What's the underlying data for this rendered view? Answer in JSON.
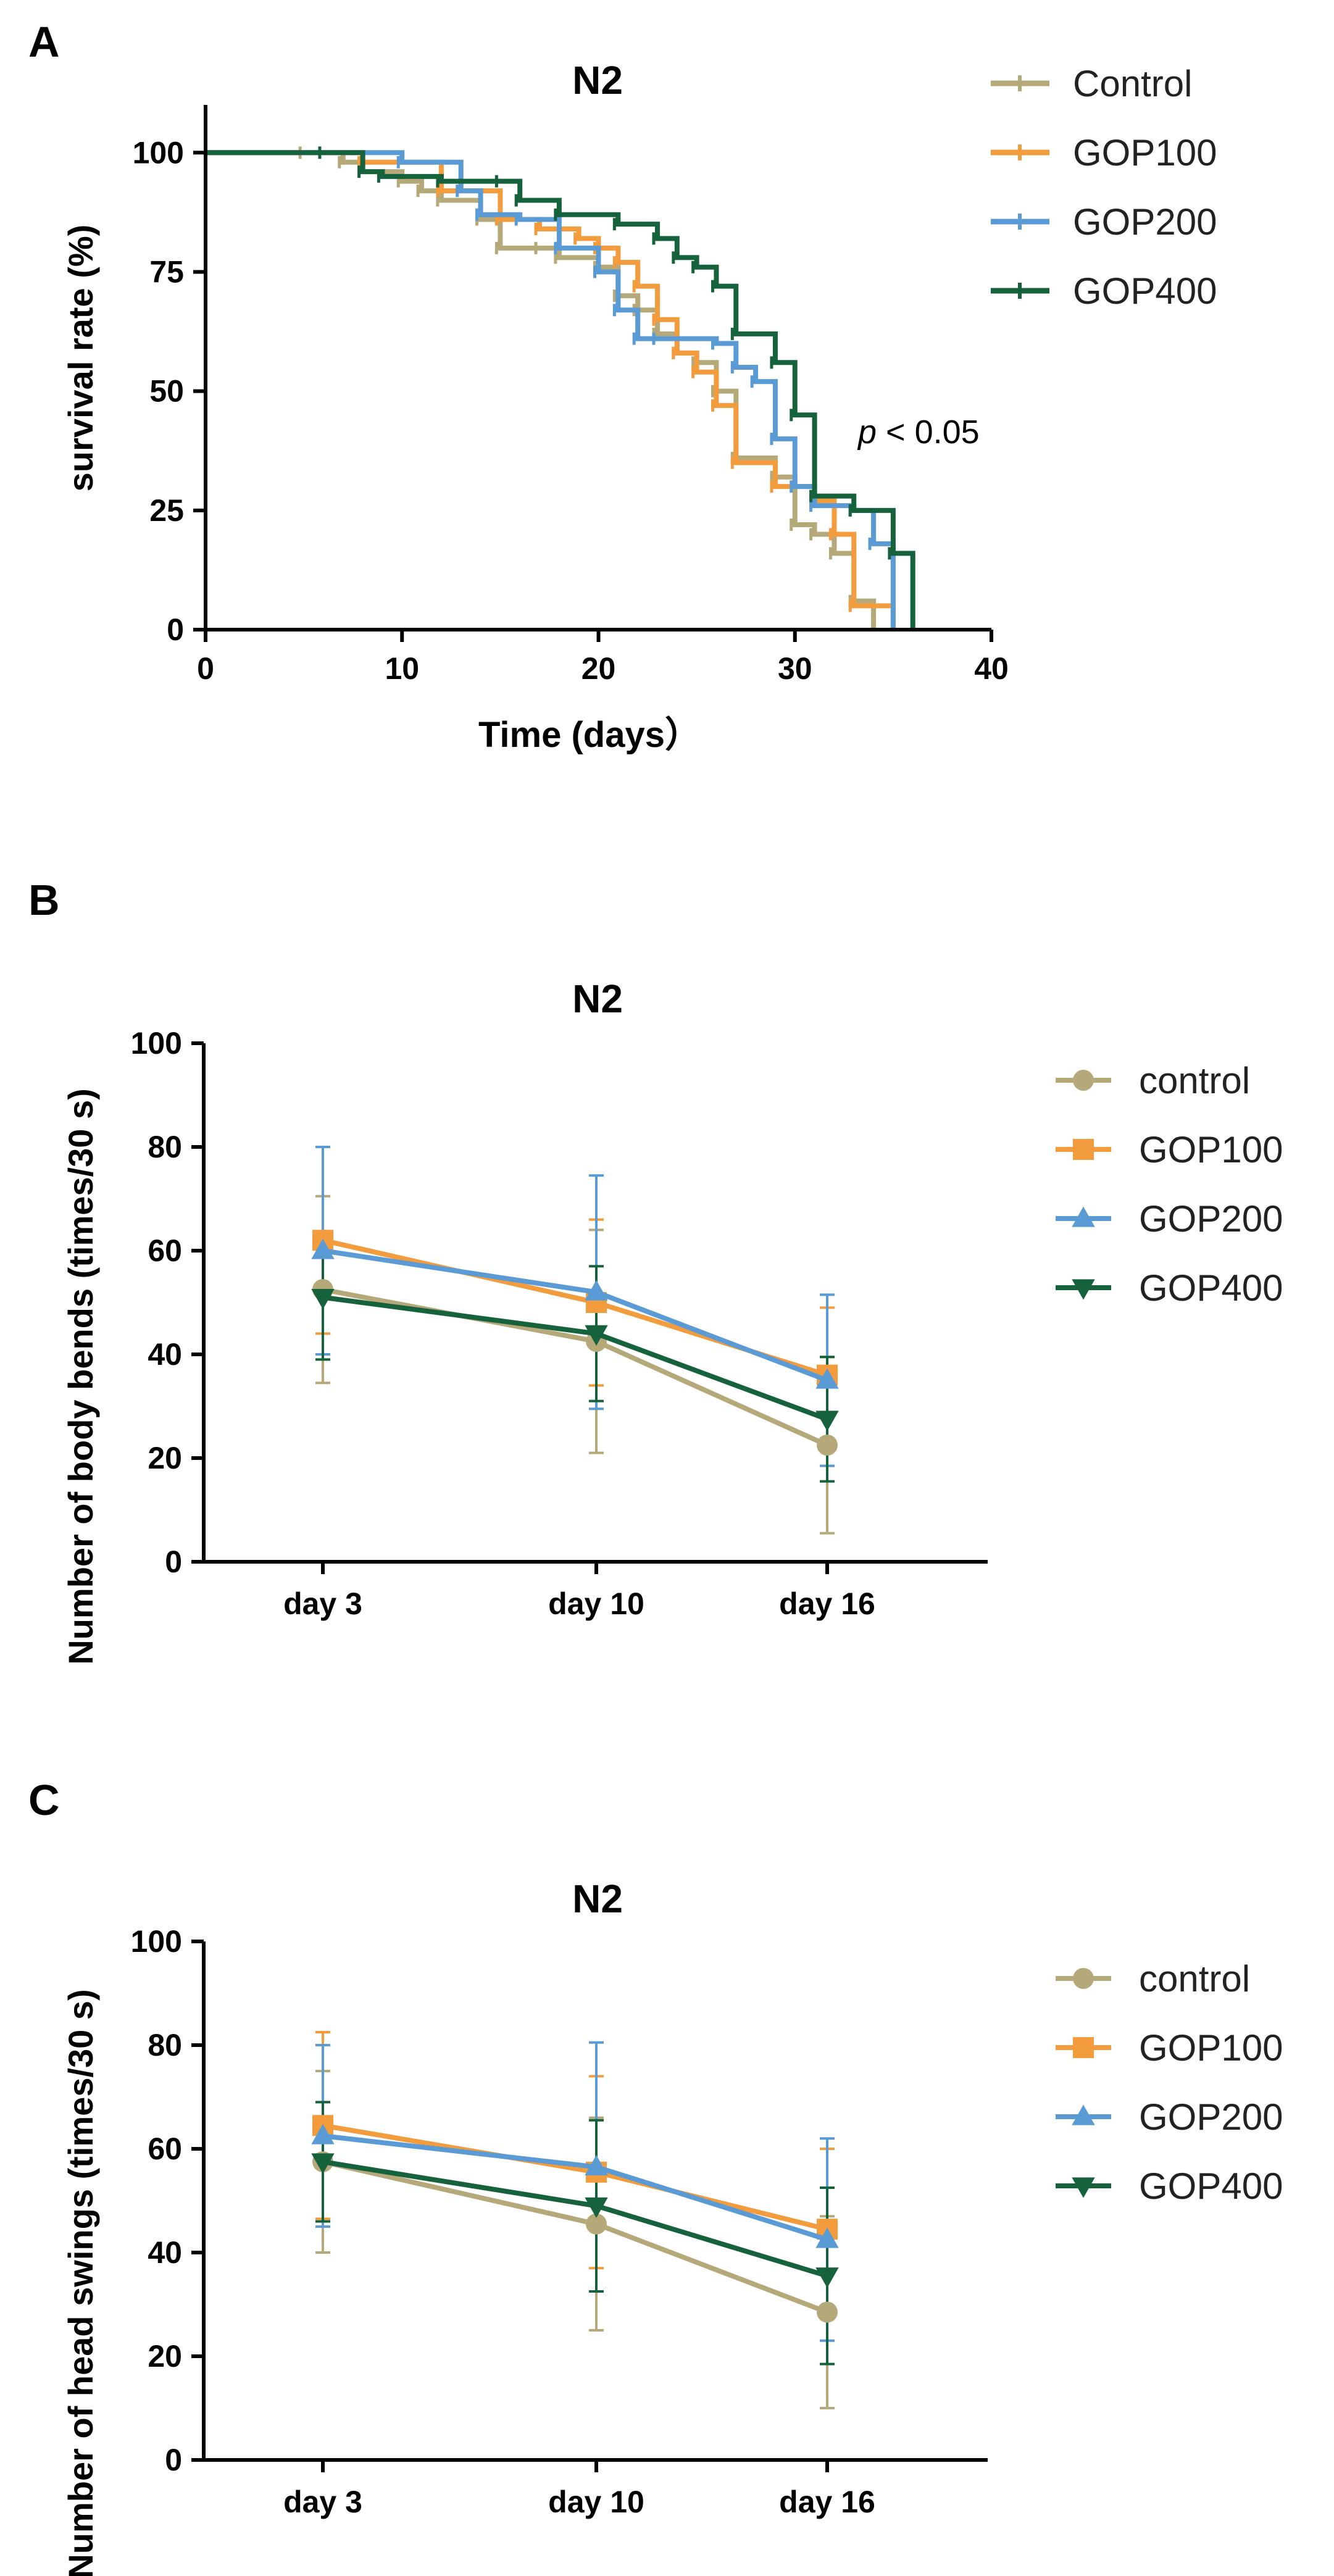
{
  "chart_data": [
    {
      "panel": "A",
      "type": "line",
      "subtype": "kaplan-meier",
      "title": "N2",
      "xlabel": "Time (days）",
      "ylabel": "survival rate (%)",
      "xlim": [
        0,
        40
      ],
      "ylim": [
        0,
        110
      ],
      "xticks": [
        "0",
        "10",
        "20",
        "30",
        "40"
      ],
      "yticks": [
        "0",
        "25",
        "50",
        "75",
        "100"
      ],
      "annotation": {
        "italic": "p",
        "rest": " < 0.05"
      },
      "legend_position": "top-right",
      "series": [
        {
          "name": "Control",
          "color": "#b5a97a",
          "x": [
            0,
            5,
            7,
            8,
            10,
            11,
            12,
            14,
            15,
            17,
            18,
            20,
            21,
            22,
            23,
            24,
            25,
            26,
            27,
            29,
            30,
            31,
            32,
            33,
            34
          ],
          "y": [
            100,
            100,
            98,
            96,
            94,
            92,
            90,
            86,
            80,
            80,
            78,
            76,
            70,
            67,
            62,
            58,
            56,
            50,
            36,
            32,
            22,
            20,
            16,
            6,
            0
          ]
        },
        {
          "name": "GOP100",
          "color": "#f39c3d",
          "x": [
            0,
            8,
            12,
            15,
            17,
            19,
            20,
            21,
            22,
            23,
            24,
            25,
            26,
            27,
            29,
            31,
            32,
            33,
            35
          ],
          "y": [
            100,
            98,
            92,
            86,
            84,
            82,
            80,
            77,
            72,
            65,
            58,
            54,
            47,
            35,
            30,
            27,
            20,
            5,
            0
          ]
        },
        {
          "name": "GOP200",
          "color": "#5b9bd5",
          "x": [
            0,
            10,
            13,
            14,
            16,
            18,
            20,
            21,
            22,
            23,
            26,
            27,
            28,
            29,
            30,
            31,
            33,
            34,
            35
          ],
          "y": [
            100,
            98,
            92,
            87,
            86,
            80,
            75,
            67,
            61,
            61,
            60,
            55,
            52,
            40,
            30,
            26,
            25,
            18,
            0
          ]
        },
        {
          "name": "GOP400",
          "color": "#16623d",
          "x": [
            0,
            6,
            8,
            9,
            12,
            15,
            16,
            18,
            21,
            23,
            24,
            25,
            26,
            27,
            29,
            30,
            31,
            33,
            35,
            36
          ],
          "y": [
            100,
            100,
            96,
            95,
            94,
            94,
            90,
            87,
            85,
            82,
            78,
            76,
            72,
            62,
            56,
            45,
            28,
            25,
            16,
            0
          ]
        }
      ]
    },
    {
      "panel": "B",
      "type": "line",
      "title": "N2",
      "xlabel": "",
      "ylabel": "Number of body bends (times/30 s)",
      "categories": [
        "day 3",
        "day 10",
        "day 16"
      ],
      "ylim": [
        0,
        100
      ],
      "yticks": [
        "0",
        "20",
        "40",
        "60",
        "80",
        "100"
      ],
      "legend_position": "right",
      "series": [
        {
          "name": "control",
          "color": "#b5a97a",
          "marker": "circle",
          "values": [
            52.5,
            42.5,
            22.5
          ],
          "errors": [
            18,
            21.5,
            17
          ]
        },
        {
          "name": "GOP100",
          "color": "#f39c3d",
          "marker": "square",
          "values": [
            62,
            50,
            36
          ],
          "errors": [
            18,
            16,
            13
          ]
        },
        {
          "name": "GOP200",
          "color": "#5b9bd5",
          "marker": "triangle-up",
          "values": [
            60,
            52,
            35
          ],
          "errors": [
            20,
            22.5,
            16.5
          ]
        },
        {
          "name": "GOP400",
          "color": "#16623d",
          "marker": "triangle-down",
          "values": [
            51,
            44,
            27.5
          ],
          "errors": [
            12,
            13,
            12
          ]
        }
      ]
    },
    {
      "panel": "C",
      "type": "line",
      "title": "N2",
      "xlabel": "",
      "ylabel": "Number of head swings (times/30 s)",
      "categories": [
        "day 3",
        "day 10",
        "day 16"
      ],
      "ylim": [
        0,
        100
      ],
      "yticks": [
        "0",
        "20",
        "40",
        "60",
        "80",
        "100"
      ],
      "legend_position": "right",
      "series": [
        {
          "name": "control",
          "color": "#b5a97a",
          "marker": "circle",
          "values": [
            57.5,
            45.5,
            28.5
          ],
          "errors": [
            17.5,
            20.5,
            18.5
          ]
        },
        {
          "name": "GOP100",
          "color": "#f39c3d",
          "marker": "square",
          "values": [
            64.5,
            55.5,
            44.5
          ],
          "errors": [
            18,
            18.5,
            15.5
          ]
        },
        {
          "name": "GOP200",
          "color": "#5b9bd5",
          "marker": "triangle-up",
          "values": [
            62.5,
            56.5,
            42.5
          ],
          "errors": [
            17.5,
            24,
            19.5
          ]
        },
        {
          "name": "GOP400",
          "color": "#16623d",
          "marker": "triangle-down",
          "values": [
            57.5,
            49,
            35.5
          ],
          "errors": [
            11.5,
            16.5,
            17
          ]
        }
      ]
    }
  ]
}
